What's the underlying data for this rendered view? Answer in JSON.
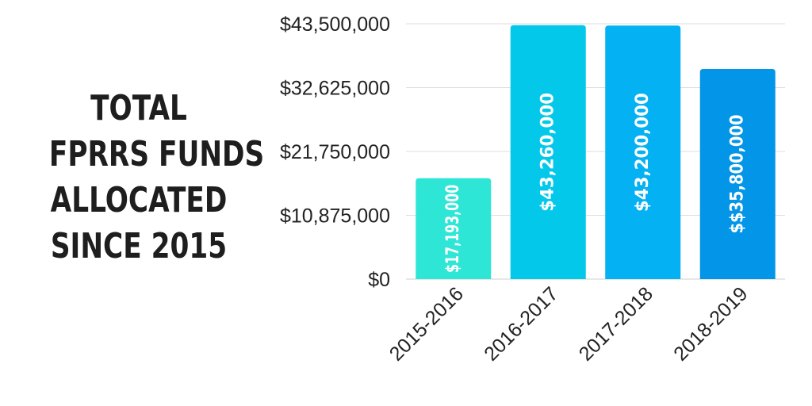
{
  "side_title": {
    "lines": [
      "TOTAL",
      "FPRRS FUNDS",
      "ALLOCATED",
      "SINCE 2015"
    ]
  },
  "chart_data": {
    "type": "bar",
    "title": "",
    "xlabel": "",
    "ylabel": "",
    "categories": [
      "2015-2016",
      "2016-2017",
      "2017-2018",
      "2018-2019"
    ],
    "values": [
      17193000,
      43260000,
      43200000,
      35800000
    ],
    "data_labels": [
      "$17,193,000",
      "$43,260,000",
      "$43,200,000",
      "$$35,800,000"
    ],
    "bar_colors": [
      "#2ee6d6",
      "#03c8ea",
      "#04b1f2",
      "#0295e8"
    ],
    "ylim": [
      0,
      43500000
    ],
    "yticks": [
      0,
      10875000,
      21750000,
      32625000,
      43500000
    ],
    "ytick_labels": [
      "$0",
      "$10,875,000",
      "$21,750,000",
      "$32,625,000",
      "$43,500,000"
    ],
    "grid": true,
    "grid_color": "#dddddd",
    "legend": "none"
  }
}
